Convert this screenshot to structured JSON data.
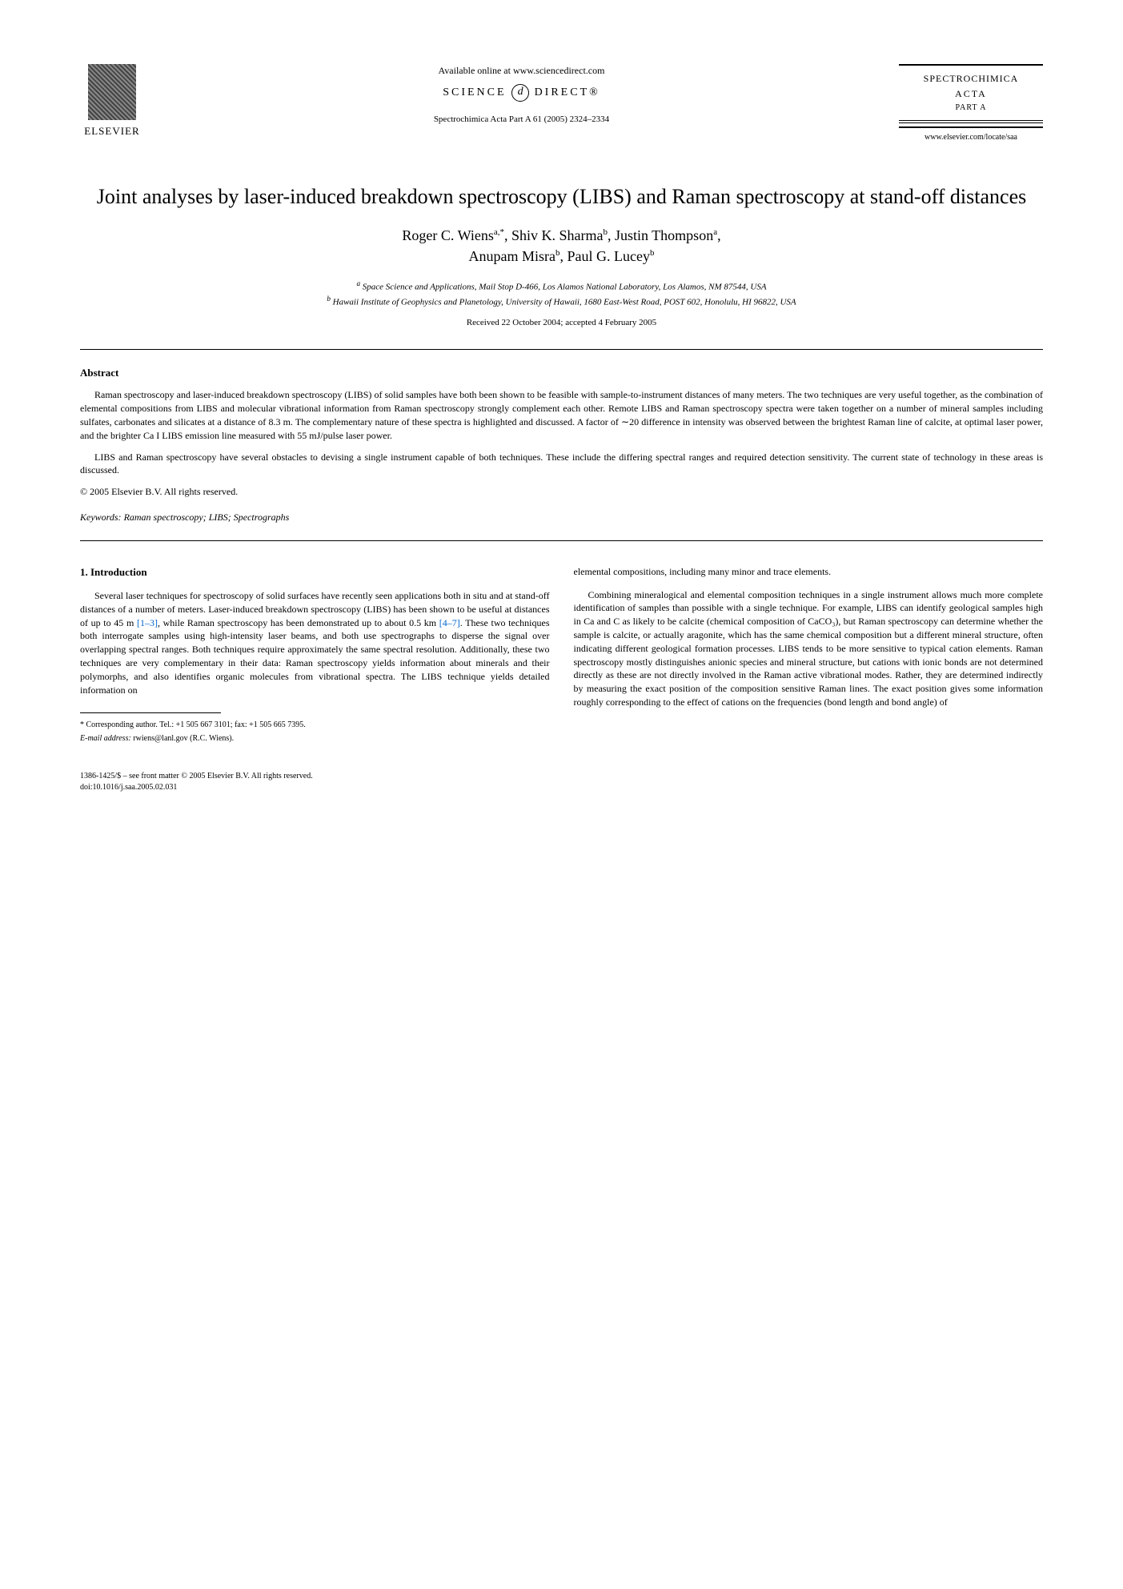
{
  "header": {
    "elsevier_label": "ELSEVIER",
    "available_online": "Available online at www.sciencedirect.com",
    "science_direct_prefix": "SCIENCE",
    "science_direct_symbol": "d",
    "science_direct_suffix": "DIRECT®",
    "journal_ref": "Spectrochimica Acta Part A 61 (2005) 2324–2334",
    "journal_name": "SPECTROCHIMICA",
    "journal_sub": "ACTA",
    "journal_part": "PART A",
    "journal_url": "www.elsevier.com/locate/saa"
  },
  "title": "Joint analyses by laser-induced breakdown spectroscopy (LIBS) and Raman spectroscopy at stand-off distances",
  "authors": {
    "list": "Roger C. Wiens",
    "a1_sup": "a,",
    "a1_star": "*",
    "a2": ", Shiv K. Sharma",
    "a2_sup": "b",
    "a3": ", Justin Thompson",
    "a3_sup": "a",
    "a4": "Anupam Misra",
    "a4_sup": "b",
    "a5": ", Paul G. Lucey",
    "a5_sup": "b"
  },
  "affiliations": {
    "a": "Space Science and Applications, Mail Stop D-466, Los Alamos National Laboratory, Los Alamos, NM 87544, USA",
    "b": "Hawaii Institute of Geophysics and Planetology, University of Hawaii, 1680 East-West Road, POST 602, Honolulu, HI 96822, USA"
  },
  "received": "Received 22 October 2004; accepted 4 February 2005",
  "abstract": {
    "heading": "Abstract",
    "p1": "Raman spectroscopy and laser-induced breakdown spectroscopy (LIBS) of solid samples have both been shown to be feasible with sample-to-instrument distances of many meters. The two techniques are very useful together, as the combination of elemental compositions from LIBS and molecular vibrational information from Raman spectroscopy strongly complement each other. Remote LIBS and Raman spectroscopy spectra were taken together on a number of mineral samples including sulfates, carbonates and silicates at a distance of 8.3 m. The complementary nature of these spectra is highlighted and discussed. A factor of ∼20 difference in intensity was observed between the brightest Raman line of calcite, at optimal laser power, and the brighter Ca I LIBS emission line measured with 55 mJ/pulse laser power.",
    "p2": "LIBS and Raman spectroscopy have several obstacles to devising a single instrument capable of both techniques. These include the differing spectral ranges and required detection sensitivity. The current state of technology in these areas is discussed.",
    "copyright": "© 2005 Elsevier B.V. All rights reserved."
  },
  "keywords": {
    "label": "Keywords:",
    "text": " Raman spectroscopy; LIBS; Spectrographs"
  },
  "body": {
    "intro_heading": "1. Introduction",
    "col1_p1a": "Several laser techniques for spectroscopy of solid surfaces have recently seen applications both in situ and at stand-off distances of a number of meters. Laser-induced breakdown spectroscopy (LIBS) has been shown to be useful at distances of up to 45 m ",
    "ref1": "[1–3]",
    "col1_p1b": ", while Raman spectroscopy has been demonstrated up to about 0.5 km ",
    "ref2": "[4–7]",
    "col1_p1c": ". These two techniques both interrogate samples using high-intensity laser beams, and both use spectrographs to disperse the signal over overlapping spectral ranges. Both techniques require approximately the same spectral resolution. Additionally, these two techniques are very complementary in their data: Raman spectroscopy yields information about minerals and their polymorphs, and also identifies organic molecules from vibrational spectra. The LIBS technique yields detailed information on",
    "col2_p1": "elemental compositions, including many minor and trace elements.",
    "col2_p2": "Combining mineralogical and elemental composition techniques in a single instrument allows much more complete identification of samples than possible with a single technique. For example, LIBS can identify geological samples high in Ca and C as likely to be calcite (chemical composition of CaCO₃), but Raman spectroscopy can determine whether the sample is calcite, or actually aragonite, which has the same chemical composition but a different mineral structure, often indicating different geological formation processes. LIBS tends to be more sensitive to typical cation elements. Raman spectroscopy mostly distinguishes anionic species and mineral structure, but cations with ionic bonds are not determined directly as these are not directly involved in the Raman active vibrational modes. Rather, they are determined indirectly by measuring the exact position of the composition sensitive Raman lines. The exact position gives some information roughly corresponding to the effect of cations on the frequencies (bond length and bond angle) of"
  },
  "footnotes": {
    "corresponding": "* Corresponding author. Tel.: +1 505 667 3101; fax: +1 505 665 7395.",
    "email_label": "E-mail address:",
    "email": " rwiens@lanl.gov (R.C. Wiens).",
    "front_matter": "1386-1425/$ – see front matter © 2005 Elsevier B.V. All rights reserved.",
    "doi": "doi:10.1016/j.saa.2005.02.031"
  }
}
